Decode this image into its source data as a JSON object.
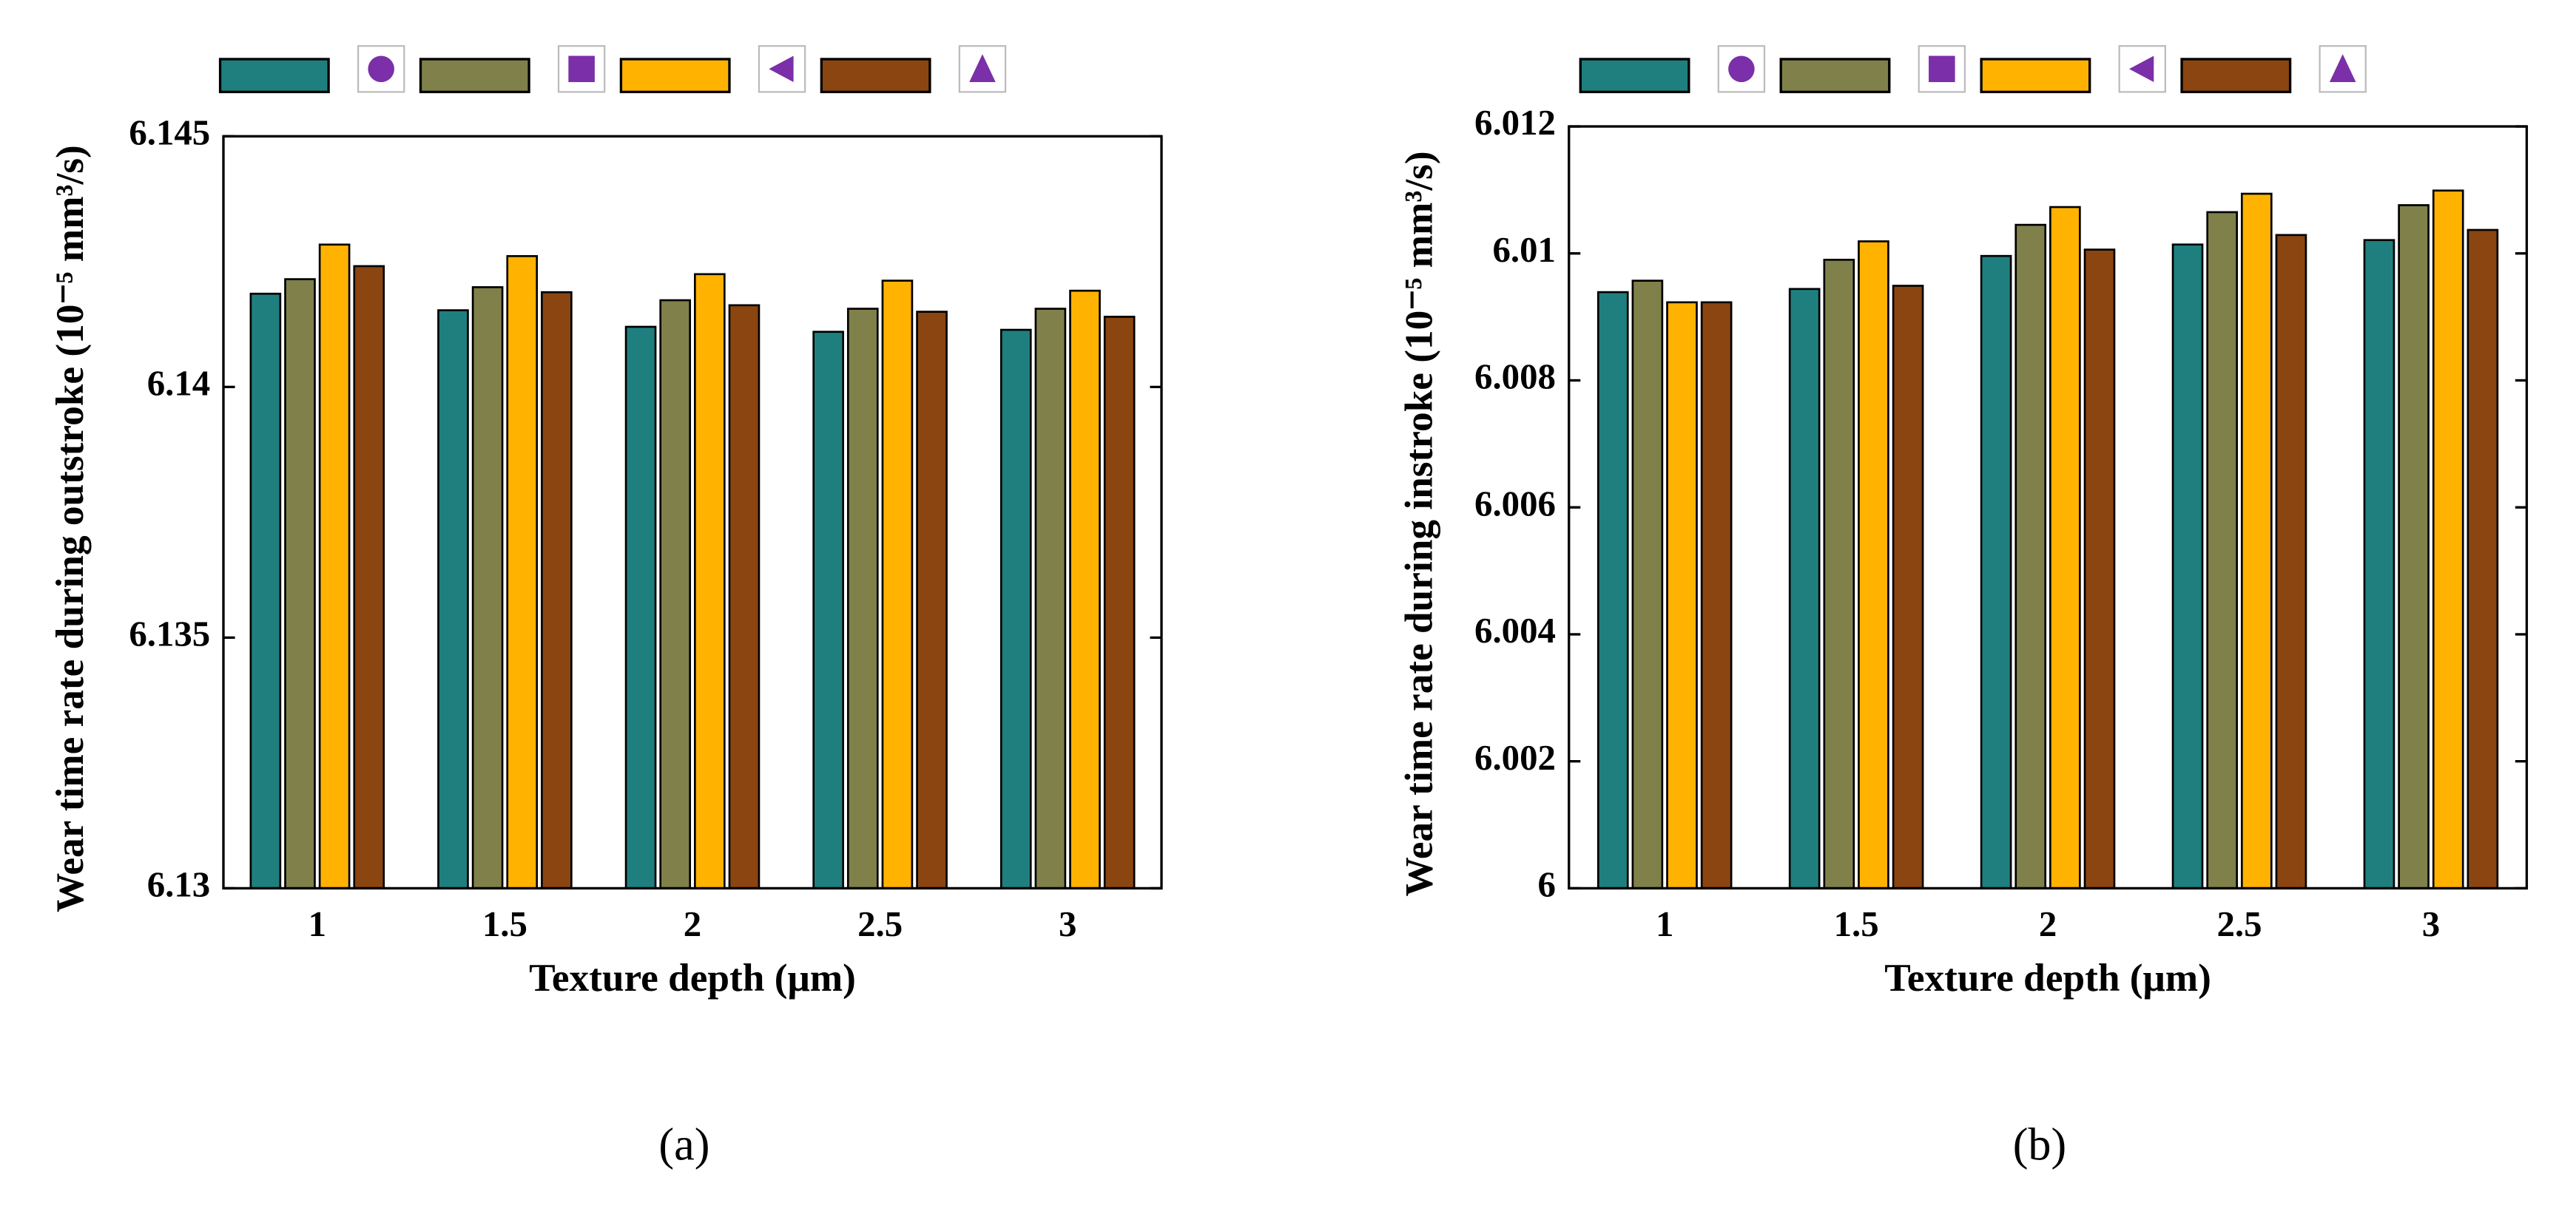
{
  "chart_data": [
    {
      "type": "bar",
      "caption": "(a)",
      "xlabel": "Texture depth (μm)",
      "ylabel": "Wear time rate during outstroke (10⁻⁵ mm³/s)",
      "categories": [
        "1",
        "1.5",
        "2",
        "2.5",
        "3"
      ],
      "series": [
        {
          "color": "#1f7f7f",
          "marker": "circle",
          "values": [
            6.14186,
            6.14153,
            6.1412,
            6.1411,
            6.14114
          ]
        },
        {
          "color": "#80804a",
          "marker": "square",
          "values": [
            6.14215,
            6.14199,
            6.14173,
            6.14156,
            6.14156
          ]
        },
        {
          "color": "#ffb300",
          "marker": "triangle-left",
          "values": [
            6.14284,
            6.14261,
            6.14225,
            6.14212,
            6.14192
          ]
        },
        {
          "color": "#8b4510",
          "marker": "triangle-up",
          "values": [
            6.14241,
            6.14189,
            6.14163,
            6.1415,
            6.1414
          ]
        }
      ],
      "ylim": [
        6.13,
        6.145
      ],
      "yticks": [
        6.13,
        6.135,
        6.14,
        6.145
      ],
      "grid": false,
      "marker_color": "#7b2fa8"
    },
    {
      "type": "bar",
      "caption": "(b)",
      "xlabel": "Texture depth (μm)",
      "ylabel": "Wear time rate during instroke (10⁻⁵ mm³/s)",
      "categories": [
        "1",
        "1.5",
        "2",
        "2.5",
        "3"
      ],
      "series": [
        {
          "color": "#1f7f7f",
          "marker": "circle",
          "values": [
            6.00939,
            6.00944,
            6.00996,
            6.01014,
            6.01021
          ]
        },
        {
          "color": "#80804a",
          "marker": "square",
          "values": [
            6.00957,
            6.0099,
            6.01045,
            6.01065,
            6.01076
          ]
        },
        {
          "color": "#ffb300",
          "marker": "triangle-left",
          "values": [
            6.00923,
            6.01019,
            6.01073,
            6.01094,
            6.01099
          ]
        },
        {
          "color": "#8b4510",
          "marker": "triangle-up",
          "values": [
            6.00923,
            6.00949,
            6.01006,
            6.01029,
            6.01037
          ]
        }
      ],
      "ylim": [
        6,
        6.012
      ],
      "yticks": [
        6,
        6.002,
        6.004,
        6.006,
        6.008,
        6.01,
        6.012
      ],
      "grid": false,
      "marker_color": "#7b2fa8"
    }
  ]
}
